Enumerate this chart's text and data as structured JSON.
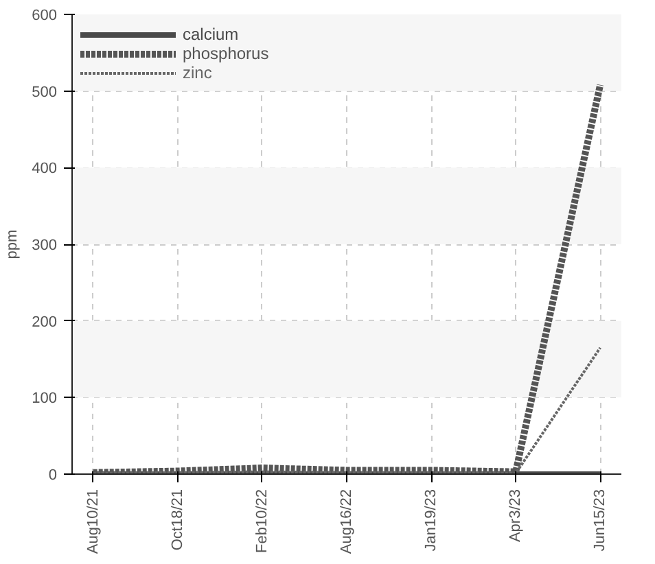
{
  "chart_data": {
    "type": "line",
    "ylabel": "ppm",
    "categories": [
      "Aug10/21",
      "Oct18/21",
      "Feb10/22",
      "Aug16/22",
      "Jan19/23",
      "Apr3/23",
      "Jun15/23"
    ],
    "series": [
      {
        "name": "calcium",
        "color": "#4a4a4a",
        "line_style": "solid",
        "values": [
          0,
          0,
          0,
          0,
          0,
          0,
          0
        ]
      },
      {
        "name": "phosphorus",
        "color": "#555555",
        "line_style": "dotted",
        "values": [
          2,
          4,
          8,
          5,
          5,
          3,
          508
        ]
      },
      {
        "name": "zinc",
        "color": "#666666",
        "line_style": "dashed",
        "values": [
          1,
          2,
          3,
          2,
          2,
          1,
          165
        ]
      }
    ],
    "ylim": [
      0,
      600
    ],
    "yticks": [
      0,
      100,
      200,
      300,
      400,
      500,
      600
    ],
    "bands": [
      {
        "axis": "y",
        "from": 100,
        "to": 200,
        "color": "#f6f6f6"
      },
      {
        "axis": "y",
        "from": 300,
        "to": 400,
        "color": "#f6f6f6"
      },
      {
        "axis": "y",
        "from": 500,
        "to": 600,
        "color": "#f6f6f6"
      }
    ],
    "grid": true,
    "legend": "top left",
    "marker": "none"
  }
}
